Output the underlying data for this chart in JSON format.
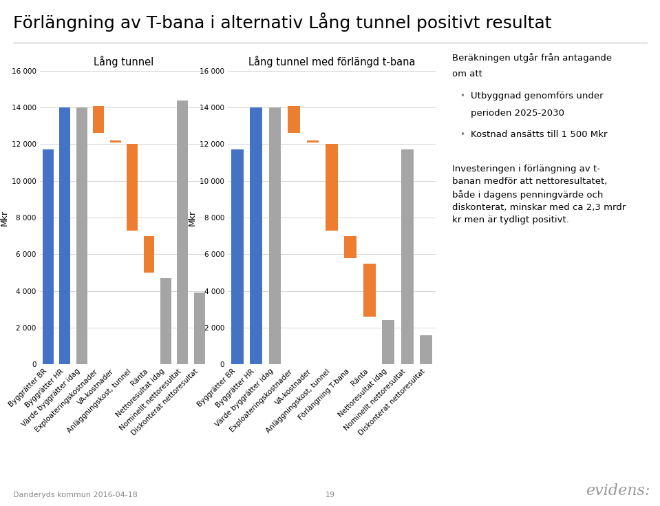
{
  "title": "Förlängning av T-bana i alternativ Lång tunnel positivt resultat",
  "title_fontsize": 18,
  "chart1_title": "Lång tunnel",
  "chart2_title": "Lång tunnel med förlängd t-bana",
  "ylabel": "Mkr",
  "ylim": [
    0,
    16000
  ],
  "yticks": [
    0,
    2000,
    4000,
    6000,
    8000,
    10000,
    12000,
    14000,
    16000
  ],
  "ytick_labels": [
    "0",
    "2 000",
    "4 000",
    "6 000",
    "8 000",
    "10 000",
    "12 000",
    "14 000",
    "16 000"
  ],
  "color_blue": "#4472C4",
  "color_orange": "#ED7D31",
  "color_gray": "#A5A5A5",
  "bar_width": 0.65,
  "chart1_categories": [
    "Byggrätter BR",
    "Byggrätter HR",
    "Värde byggrätter idag",
    "Exploateringskostnader",
    "VA-kostnader",
    "Anläggningskost, tunnel",
    "Ränta",
    "Nettoresultat idag",
    "Nominellt nettoresultat",
    "Diskonterat nettoresultat"
  ],
  "chart1_bottoms": [
    0,
    0,
    0,
    12600,
    12100,
    7300,
    5000,
    0,
    0,
    0
  ],
  "chart1_heights": [
    11700,
    14000,
    14000,
    1500,
    100,
    4700,
    2000,
    4700,
    14400,
    3900
  ],
  "chart1_colors": [
    "blue",
    "blue",
    "gray",
    "orange",
    "orange",
    "orange",
    "orange",
    "gray",
    "gray",
    "gray"
  ],
  "chart2_categories": [
    "Byggrätter BR",
    "Byggrätter HR",
    "Värde byggrätter idag",
    "Exploateringskostnader",
    "VA-kostnader",
    "Anläggningskost, tunnel",
    "Förlängning T-bana",
    "Ränta",
    "Nettoresultat idag",
    "Nominellt nettoresultat",
    "Diskonterat nettoresultat"
  ],
  "chart2_bottoms": [
    0,
    0,
    0,
    12600,
    12100,
    7300,
    5800,
    2600,
    0,
    0,
    0
  ],
  "chart2_heights": [
    11700,
    14000,
    14000,
    1500,
    100,
    4700,
    1200,
    2900,
    2400,
    11700,
    1600
  ],
  "chart2_colors": [
    "blue",
    "blue",
    "gray",
    "orange",
    "orange",
    "orange",
    "orange",
    "orange",
    "gray",
    "gray",
    "gray"
  ],
  "bullet_color": "#808080",
  "text_fontsize": 9.5,
  "footer_left": "Danderyds kommun 2016-04-18",
  "footer_center": "19",
  "footer_right": "evidens:",
  "background_color": "#FFFFFF",
  "grid_color": "#D0D0D0",
  "tick_fontsize": 7.5,
  "ylabel_fontsize": 9,
  "chart_title_fontsize": 10.5
}
